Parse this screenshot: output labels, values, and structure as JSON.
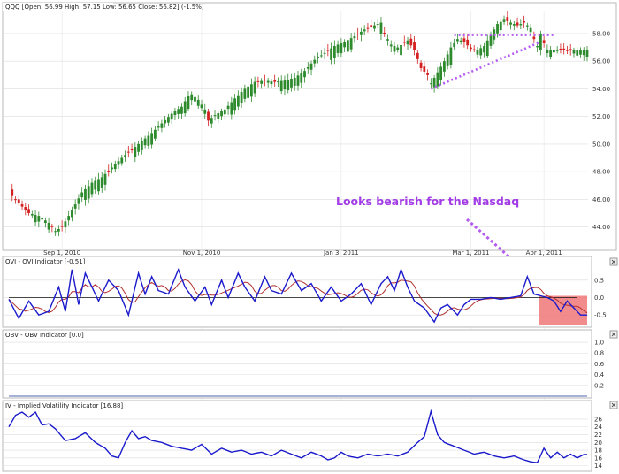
{
  "colors": {
    "up": "#2d8a2d",
    "down": "#d42020",
    "ovi": "#1a1acc",
    "ovi_signal": "#b03030",
    "annotation": "#b45cf0",
    "note_text": "#a23ce6",
    "bear_box": "#f07878",
    "grid": "#dcdcdc",
    "hline": "#111111"
  },
  "icons": {
    "close": "close-icon"
  },
  "chart_data": [
    {
      "type": "candlestick",
      "title": "QQQ [Open: 56.99  High: 57.15  Low: 56.65  Close: 56.82] (-1.5%)",
      "ylim": [
        42.5,
        59.6
      ],
      "y_ticks": [
        44,
        46,
        48,
        50,
        52,
        54,
        56,
        58
      ],
      "y_tick_labels": [
        "44.00",
        "46.00",
        "48.00",
        "50.00",
        "52.00",
        "54.00",
        "56.00",
        "58.00"
      ],
      "x_ticks": [
        {
          "label": "Sep 1, 2010",
          "index": 16
        },
        {
          "label": "Nov 1, 2010",
          "index": 58
        },
        {
          "label": "Jan 3, 2011",
          "index": 100
        },
        {
          "label": "Mar 1, 2011",
          "index": 139
        },
        {
          "label": "Apr 1, 2011",
          "index": 161
        }
      ],
      "close_anchors": [
        [
          0,
          46.5
        ],
        [
          3,
          45.7
        ],
        [
          6,
          45.0
        ],
        [
          9,
          44.8
        ],
        [
          12,
          44.3
        ],
        [
          14,
          43.7
        ],
        [
          16,
          44.0
        ],
        [
          19,
          45.2
        ],
        [
          22,
          46.5
        ],
        [
          25,
          47.2
        ],
        [
          28,
          47.6
        ],
        [
          31,
          48.3
        ],
        [
          34,
          49.0
        ],
        [
          37,
          49.6
        ],
        [
          40,
          50.2
        ],
        [
          43,
          50.8
        ],
        [
          46,
          51.5
        ],
        [
          49,
          52.2
        ],
        [
          52,
          52.7
        ],
        [
          54,
          53.5
        ],
        [
          55,
          53.6
        ],
        [
          57,
          53.2
        ],
        [
          59,
          52.5
        ],
        [
          60,
          51.7
        ],
        [
          62,
          52.1
        ],
        [
          65,
          52.5
        ],
        [
          68,
          53.3
        ],
        [
          71,
          54.0
        ],
        [
          74,
          54.5
        ],
        [
          77,
          54.6
        ],
        [
          80,
          54.5
        ],
        [
          83,
          54.6
        ],
        [
          86,
          54.8
        ],
        [
          89,
          55.3
        ],
        [
          92,
          56.1
        ],
        [
          95,
          56.6
        ],
        [
          98,
          57.1
        ],
        [
          101,
          57.4
        ],
        [
          104,
          57.8
        ],
        [
          107,
          58.3
        ],
        [
          110,
          58.6
        ],
        [
          112,
          58.8
        ],
        [
          113,
          58.0
        ],
        [
          115,
          57.2
        ],
        [
          117,
          57.0
        ],
        [
          120,
          57.5
        ],
        [
          122,
          56.8
        ],
        [
          124,
          55.5
        ],
        [
          126,
          55.0
        ],
        [
          127,
          54.4
        ],
        [
          129,
          55.2
        ],
        [
          131,
          56.0
        ],
        [
          133,
          57.0
        ],
        [
          135,
          57.6
        ],
        [
          137,
          57.4
        ],
        [
          139,
          56.9
        ],
        [
          141,
          56.8
        ],
        [
          143,
          57.1
        ],
        [
          145,
          57.9
        ],
        [
          147,
          58.7
        ],
        [
          149,
          59.0
        ],
        [
          151,
          58.8
        ],
        [
          153,
          58.6
        ],
        [
          155,
          58.8
        ],
        [
          157,
          58.4
        ],
        [
          158,
          57.6
        ],
        [
          159,
          57.1
        ],
        [
          160,
          58.0
        ],
        [
          161,
          57.3
        ],
        [
          162,
          56.8
        ]
      ],
      "trendlines": [
        {
          "from": [
            127,
            54.0
          ],
          "to": [
            160,
            57.4
          ],
          "style": "dotted"
        },
        {
          "from": [
            134,
            57.9
          ],
          "to": [
            164,
            57.9
          ],
          "style": "dotted"
        }
      ]
    },
    {
      "type": "line",
      "title": "OVI - OVI Indicator [-0.51]",
      "ylim": [
        -0.8,
        0.9
      ],
      "y_ticks": [
        0.5,
        0.0,
        -0.5
      ],
      "y_tick_labels": [
        "0.5",
        "0.0",
        "-0.5"
      ],
      "series": [
        {
          "role": "ovi",
          "anchors": [
            [
              0,
              -0.05
            ],
            [
              3,
              -0.6
            ],
            [
              6,
              -0.1
            ],
            [
              9,
              -0.5
            ],
            [
              12,
              -0.4
            ],
            [
              15,
              0.3
            ],
            [
              17,
              -0.4
            ],
            [
              19,
              0.8
            ],
            [
              21,
              -0.2
            ],
            [
              23,
              0.7
            ],
            [
              25,
              0.3
            ],
            [
              27,
              -0.1
            ],
            [
              30,
              0.5
            ],
            [
              33,
              0.2
            ],
            [
              36,
              -0.5
            ],
            [
              39,
              0.7
            ],
            [
              41,
              0.1
            ],
            [
              43,
              0.6
            ],
            [
              45,
              0.2
            ],
            [
              48,
              0.1
            ],
            [
              51,
              0.8
            ],
            [
              53,
              0.3
            ],
            [
              56,
              -0.1
            ],
            [
              59,
              0.3
            ],
            [
              61,
              -0.2
            ],
            [
              64,
              0.5
            ],
            [
              66,
              0.0
            ],
            [
              69,
              0.7
            ],
            [
              71,
              0.3
            ],
            [
              74,
              -0.1
            ],
            [
              77,
              0.6
            ],
            [
              79,
              0.2
            ],
            [
              82,
              0.1
            ],
            [
              85,
              0.7
            ],
            [
              88,
              0.2
            ],
            [
              91,
              0.4
            ],
            [
              94,
              -0.1
            ],
            [
              97,
              0.3
            ],
            [
              100,
              -0.1
            ],
            [
              103,
              0.1
            ],
            [
              106,
              0.4
            ],
            [
              109,
              -0.2
            ],
            [
              112,
              0.4
            ],
            [
              114,
              0.6
            ],
            [
              116,
              0.2
            ],
            [
              118,
              0.8
            ],
            [
              120,
              0.3
            ],
            [
              122,
              -0.1
            ],
            [
              125,
              -0.3
            ],
            [
              128,
              -0.7
            ],
            [
              130,
              -0.3
            ],
            [
              132,
              -0.2
            ],
            [
              135,
              -0.5
            ],
            [
              137,
              -0.2
            ],
            [
              139,
              -0.05
            ],
            [
              142,
              -0.05
            ],
            [
              145,
              0.0
            ],
            [
              148,
              -0.05
            ],
            [
              151,
              0.0
            ],
            [
              154,
              0.05
            ],
            [
              156,
              0.6
            ],
            [
              158,
              0.1
            ],
            [
              160,
              0.05
            ],
            [
              162,
              0.0
            ],
            [
              164,
              -0.1
            ],
            [
              166,
              -0.4
            ],
            [
              168,
              -0.1
            ],
            [
              170,
              -0.3
            ],
            [
              172,
              -0.5
            ]
          ]
        },
        {
          "role": "signal",
          "smoothing": 4
        }
      ],
      "hline": 0.0,
      "highlight": {
        "x_from": 159.5,
        "x_to": 174,
        "y_from": -0.8,
        "y_to": 0.05
      }
    },
    {
      "type": "line",
      "title": "OBV - OBV Indicator [0.0]",
      "ylim": [
        0.0,
        1.05
      ],
      "y_ticks": [
        1.0,
        0.8,
        0.6,
        0.4,
        0.2
      ],
      "y_tick_labels": [
        "1.0",
        "0.8",
        "0.6",
        "0.4",
        "0.2"
      ],
      "series": [
        {
          "anchors": [
            [
              0,
              0.0
            ],
            [
              174,
              0.0
            ]
          ]
        }
      ]
    },
    {
      "type": "line",
      "title": "IV - Implied Volatility Indicator [16.88]",
      "ylim": [
        13.0,
        28.5
      ],
      "y_ticks": [
        26,
        24,
        22,
        20,
        18,
        16,
        14
      ],
      "y_tick_labels": [
        "26",
        "24",
        "22",
        "20",
        "18",
        "16",
        "14"
      ],
      "series": [
        {
          "anchors": [
            [
              0,
              24.0
            ],
            [
              2,
              27.0
            ],
            [
              4,
              27.8
            ],
            [
              6,
              26.5
            ],
            [
              8,
              27.8
            ],
            [
              10,
              24.5
            ],
            [
              12,
              24.8
            ],
            [
              14,
              23.5
            ],
            [
              17,
              20.5
            ],
            [
              20,
              21.0
            ],
            [
              23,
              22.5
            ],
            [
              26,
              20.0
            ],
            [
              29,
              18.5
            ],
            [
              31,
              16.5
            ],
            [
              33,
              16.0
            ],
            [
              35,
              20.0
            ],
            [
              37,
              23.0
            ],
            [
              39,
              21.0
            ],
            [
              41,
              21.5
            ],
            [
              43,
              20.5
            ],
            [
              46,
              20.0
            ],
            [
              49,
              19.0
            ],
            [
              52,
              18.5
            ],
            [
              55,
              18.0
            ],
            [
              58,
              19.5
            ],
            [
              61,
              17.0
            ],
            [
              64,
              18.5
            ],
            [
              67,
              17.5
            ],
            [
              70,
              18.0
            ],
            [
              73,
              17.0
            ],
            [
              76,
              17.5
            ],
            [
              79,
              16.5
            ],
            [
              82,
              18.0
            ],
            [
              85,
              17.0
            ],
            [
              88,
              16.0
            ],
            [
              91,
              17.5
            ],
            [
              94,
              16.5
            ],
            [
              96,
              15.5
            ],
            [
              98,
              16.0
            ],
            [
              100,
              17.5
            ],
            [
              102,
              16.5
            ],
            [
              105,
              16.0
            ],
            [
              108,
              17.0
            ],
            [
              111,
              16.5
            ],
            [
              114,
              17.0
            ],
            [
              117,
              16.5
            ],
            [
              120,
              17.5
            ],
            [
              123,
              20.0
            ],
            [
              125,
              21.5
            ],
            [
              127,
              28.0
            ],
            [
              129,
              22.0
            ],
            [
              131,
              20.0
            ],
            [
              134,
              19.0
            ],
            [
              137,
              18.0
            ],
            [
              140,
              17.0
            ],
            [
              143,
              17.5
            ],
            [
              146,
              16.5
            ],
            [
              149,
              16.0
            ],
            [
              152,
              16.5
            ],
            [
              155,
              15.5
            ],
            [
              157,
              15.0
            ],
            [
              159,
              14.8
            ],
            [
              161,
              18.5
            ],
            [
              163,
              16.0
            ],
            [
              165,
              17.5
            ],
            [
              167,
              16.0
            ],
            [
              169,
              17.0
            ],
            [
              171,
              16.0
            ],
            [
              173,
              16.88
            ]
          ]
        }
      ]
    }
  ],
  "annotation": {
    "text": "Looks bearish for the Nasdaq"
  }
}
